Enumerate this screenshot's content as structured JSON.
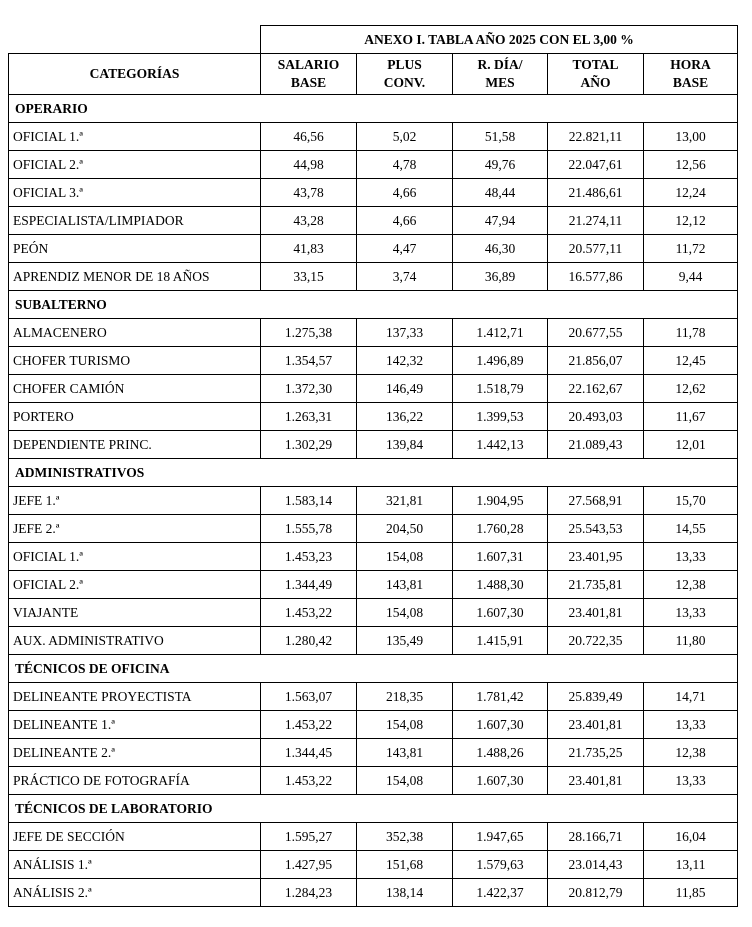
{
  "page": {
    "background": "#ffffff",
    "text_color": "#000000",
    "border_color": "#000000"
  },
  "table": {
    "title": "ANEXO I. TABLA AÑO 2025 CON EL 3,00 %",
    "header": {
      "categories": "CATEGORÍAS",
      "cols": [
        {
          "l1": "SALARIO",
          "l2": "BASE"
        },
        {
          "l1": "PLUS",
          "l2": "CONV."
        },
        {
          "l1": "R. DÍA/",
          "l2": "MES"
        },
        {
          "l1": "TOTAL",
          "l2": "AÑO"
        },
        {
          "l1": "HORA",
          "l2": "BASE"
        }
      ]
    },
    "sections": [
      {
        "name": "OPERARIO",
        "rows": [
          {
            "category": "OFICIAL 1.ª",
            "values": [
              "46,56",
              "5,02",
              "51,58",
              "22.821,11",
              "13,00"
            ]
          },
          {
            "category": "OFICIAL 2.ª",
            "values": [
              "44,98",
              "4,78",
              "49,76",
              "22.047,61",
              "12,56"
            ]
          },
          {
            "category": "OFICIAL 3.ª",
            "values": [
              "43,78",
              "4,66",
              "48,44",
              "21.486,61",
              "12,24"
            ]
          },
          {
            "category": "ESPECIALISTA/LIMPIADOR",
            "values": [
              "43,28",
              "4,66",
              "47,94",
              "21.274,11",
              "12,12"
            ]
          },
          {
            "category": "PEÓN",
            "values": [
              "41,83",
              "4,47",
              "46,30",
              "20.577,11",
              "11,72"
            ]
          },
          {
            "category": "APRENDIZ MENOR DE 18 AÑOS",
            "values": [
              "33,15",
              "3,74",
              "36,89",
              "16.577,86",
              "9,44"
            ]
          }
        ]
      },
      {
        "name": "SUBALTERNO",
        "rows": [
          {
            "category": "ALMACENERO",
            "values": [
              "1.275,38",
              "137,33",
              "1.412,71",
              "20.677,55",
              "11,78"
            ]
          },
          {
            "category": "CHOFER TURISMO",
            "values": [
              "1.354,57",
              "142,32",
              "1.496,89",
              "21.856,07",
              "12,45"
            ]
          },
          {
            "category": "CHOFER CAMIÓN",
            "values": [
              "1.372,30",
              "146,49",
              "1.518,79",
              "22.162,67",
              "12,62"
            ]
          },
          {
            "category": "PORTERO",
            "values": [
              "1.263,31",
              "136,22",
              "1.399,53",
              "20.493,03",
              "11,67"
            ]
          },
          {
            "category": "DEPENDIENTE PRINC.",
            "values": [
              "1.302,29",
              "139,84",
              "1.442,13",
              "21.089,43",
              "12,01"
            ]
          }
        ]
      },
      {
        "name": "ADMINISTRATIVOS",
        "rows": [
          {
            "category": "JEFE 1.ª",
            "values": [
              "1.583,14",
              "321,81",
              "1.904,95",
              "27.568,91",
              "15,70"
            ]
          },
          {
            "category": "JEFE 2.ª",
            "values": [
              "1.555,78",
              "204,50",
              "1.760,28",
              "25.543,53",
              "14,55"
            ]
          },
          {
            "category": "OFICIAL 1.ª",
            "values": [
              "1.453,23",
              "154,08",
              "1.607,31",
              "23.401,95",
              "13,33"
            ]
          },
          {
            "category": "OFICIAL 2.ª",
            "values": [
              "1.344,49",
              "143,81",
              "1.488,30",
              "21.735,81",
              "12,38"
            ]
          },
          {
            "category": "VIAJANTE",
            "values": [
              "1.453,22",
              "154,08",
              "1.607,30",
              "23.401,81",
              "13,33"
            ]
          },
          {
            "category": "AUX. ADMINISTRATIVO",
            "values": [
              "1.280,42",
              "135,49",
              "1.415,91",
              "20.722,35",
              "11,80"
            ]
          }
        ]
      },
      {
        "name": "TÉCNICOS DE OFICINA",
        "rows": [
          {
            "category": "DELINEANTE PROYECTISTA",
            "values": [
              "1.563,07",
              "218,35",
              "1.781,42",
              "25.839,49",
              "14,71"
            ]
          },
          {
            "category": "DELINEANTE 1.ª",
            "values": [
              "1.453,22",
              "154,08",
              "1.607,30",
              "23.401,81",
              "13,33"
            ]
          },
          {
            "category": "DELINEANTE 2.ª",
            "values": [
              "1.344,45",
              "143,81",
              "1.488,26",
              "21.735,25",
              "12,38"
            ]
          },
          {
            "category": "PRÁCTICO DE FOTOGRAFÍA",
            "values": [
              "1.453,22",
              "154,08",
              "1.607,30",
              "23.401,81",
              "13,33"
            ]
          }
        ]
      },
      {
        "name": "TÉCNICOS DE LABORATORIO",
        "rows": [
          {
            "category": "JEFE DE SECCIÓN",
            "values": [
              "1.595,27",
              "352,38",
              "1.947,65",
              "28.166,71",
              "16,04"
            ]
          },
          {
            "category": "ANÁLISIS 1.ª",
            "values": [
              "1.427,95",
              "151,68",
              "1.579,63",
              "23.014,43",
              "13,11"
            ]
          },
          {
            "category": "ANÁLISIS 2.ª",
            "values": [
              "1.284,23",
              "138,14",
              "1.422,37",
              "20.812,79",
              "11,85"
            ]
          }
        ]
      }
    ]
  }
}
